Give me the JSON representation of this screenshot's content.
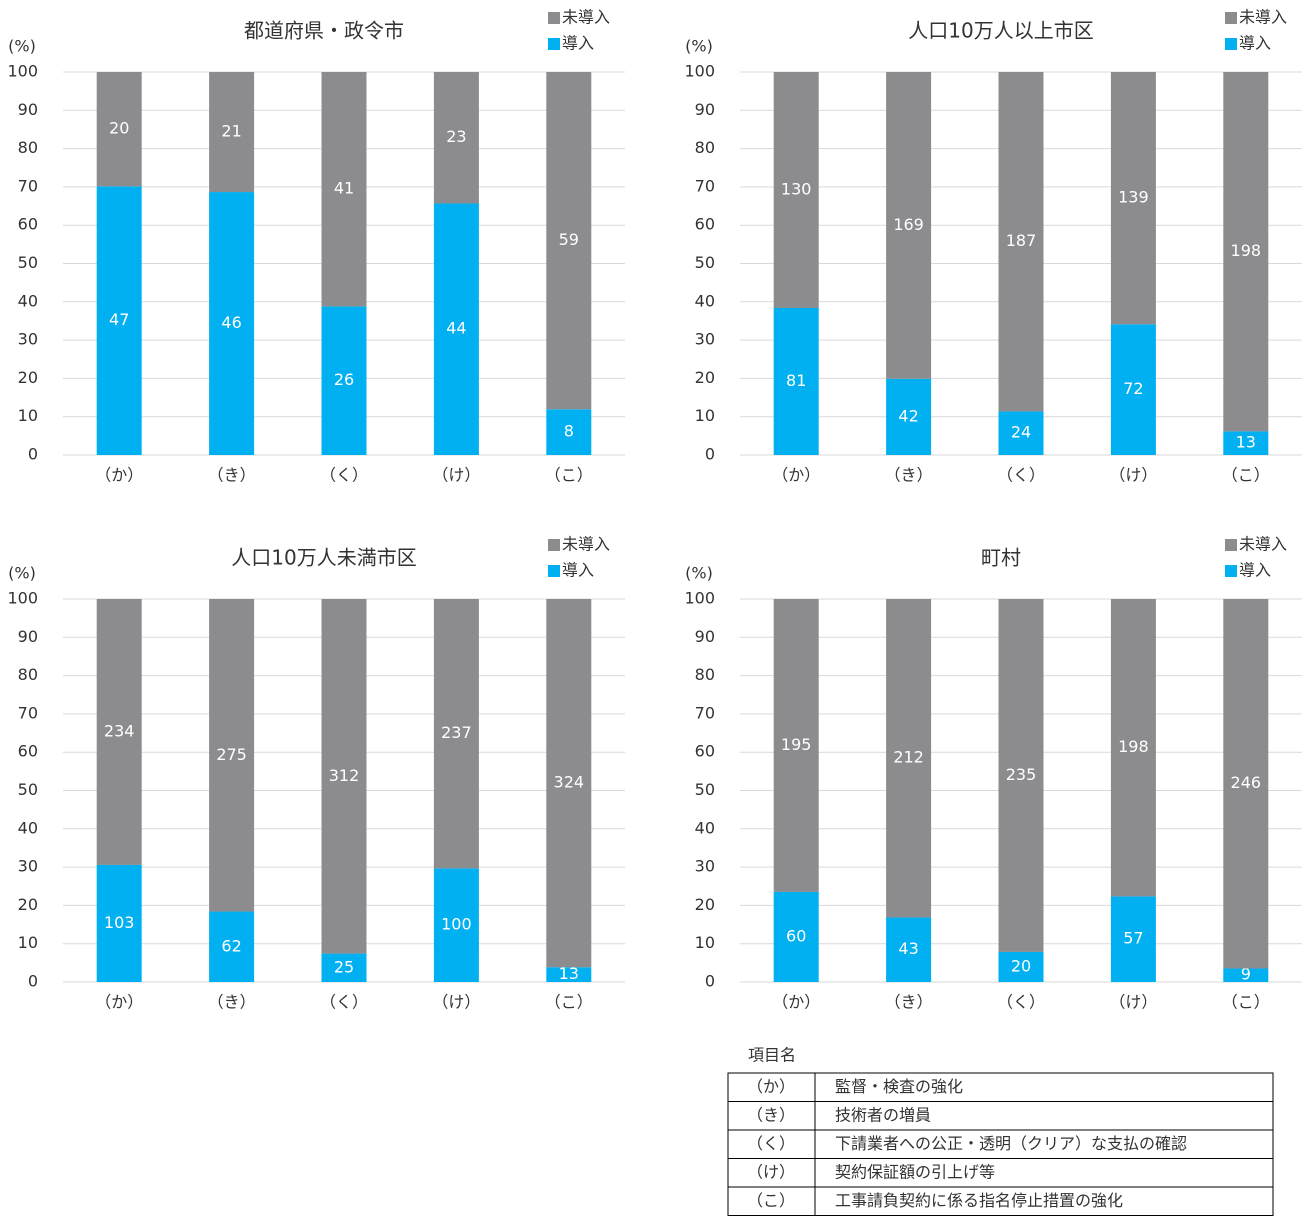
{
  "chart_data": [
    {
      "type": "bar",
      "stacking": "percent",
      "title": "都道府県・政令市",
      "y_label": "(%)",
      "categories": [
        "（か）",
        "（き）",
        "（く）",
        "（け）",
        "（こ）"
      ],
      "series": [
        {
          "name": "導入",
          "color": "#00b0f0",
          "values": [
            47,
            46,
            26,
            44,
            8
          ]
        },
        {
          "name": "未導入",
          "color": "#8c8c8f",
          "values": [
            20,
            21,
            41,
            23,
            59
          ]
        }
      ],
      "ylim": [
        0,
        100
      ],
      "yticks": [
        0,
        10,
        20,
        30,
        40,
        50,
        60,
        70,
        80,
        90,
        100
      ],
      "grid": true
    },
    {
      "type": "bar",
      "stacking": "percent",
      "title": "人口10万人以上市区",
      "y_label": "(%)",
      "categories": [
        "（か）",
        "（き）",
        "（く）",
        "（け）",
        "（こ）"
      ],
      "series": [
        {
          "name": "導入",
          "color": "#00b0f0",
          "values": [
            81,
            42,
            24,
            72,
            13
          ]
        },
        {
          "name": "未導入",
          "color": "#8c8c8f",
          "values": [
            130,
            169,
            187,
            139,
            198
          ]
        }
      ],
      "ylim": [
        0,
        100
      ],
      "yticks": [
        0,
        10,
        20,
        30,
        40,
        50,
        60,
        70,
        80,
        90,
        100
      ],
      "grid": true
    },
    {
      "type": "bar",
      "stacking": "percent",
      "title": "人口10万人未満市区",
      "y_label": "(%)",
      "categories": [
        "（か）",
        "（き）",
        "（く）",
        "（け）",
        "（こ）"
      ],
      "series": [
        {
          "name": "導入",
          "color": "#00b0f0",
          "values": [
            103,
            62,
            25,
            100,
            13
          ]
        },
        {
          "name": "未導入",
          "color": "#8c8c8f",
          "values": [
            234,
            275,
            312,
            237,
            324
          ]
        }
      ],
      "ylim": [
        0,
        100
      ],
      "yticks": [
        0,
        10,
        20,
        30,
        40,
        50,
        60,
        70,
        80,
        90,
        100
      ],
      "grid": true
    },
    {
      "type": "bar",
      "stacking": "percent",
      "title": "町村",
      "y_label": "(%)",
      "categories": [
        "（か）",
        "（き）",
        "（く）",
        "（け）",
        "（こ）"
      ],
      "series": [
        {
          "name": "導入",
          "color": "#00b0f0",
          "values": [
            60,
            43,
            20,
            57,
            9
          ]
        },
        {
          "name": "未導入",
          "color": "#8c8c8f",
          "values": [
            195,
            212,
            235,
            198,
            246
          ]
        }
      ],
      "ylim": [
        0,
        100
      ],
      "yticks": [
        0,
        10,
        20,
        30,
        40,
        50,
        60,
        70,
        80,
        90,
        100
      ],
      "grid": true
    }
  ],
  "table": {
    "title": "項目名",
    "rows": [
      [
        "（か）",
        "監督・検査の強化"
      ],
      [
        "（き）",
        "技術者の増員"
      ],
      [
        "（く）",
        "下請業者への公正・透明（クリア）な支払の確認"
      ],
      [
        "（け）",
        "契約保証額の引上げ等"
      ],
      [
        "（こ）",
        "工事請負契約に係る指名停止措置の強化"
      ]
    ]
  }
}
